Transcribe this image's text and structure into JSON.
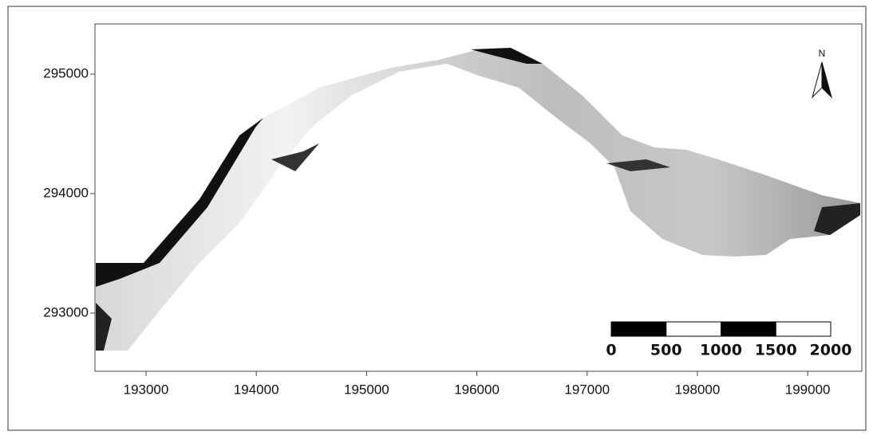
{
  "map": {
    "xlim": [
      192537,
      199491
    ],
    "ylim": [
      292513,
      295420
    ],
    "xticks": [
      193000,
      194000,
      195000,
      196000,
      197000,
      198000,
      199000
    ],
    "yticks": [
      293000,
      294000,
      295000
    ],
    "north_label": "N",
    "scale_bar": [
      0,
      500,
      1000,
      1500,
      2000
    ]
  }
}
